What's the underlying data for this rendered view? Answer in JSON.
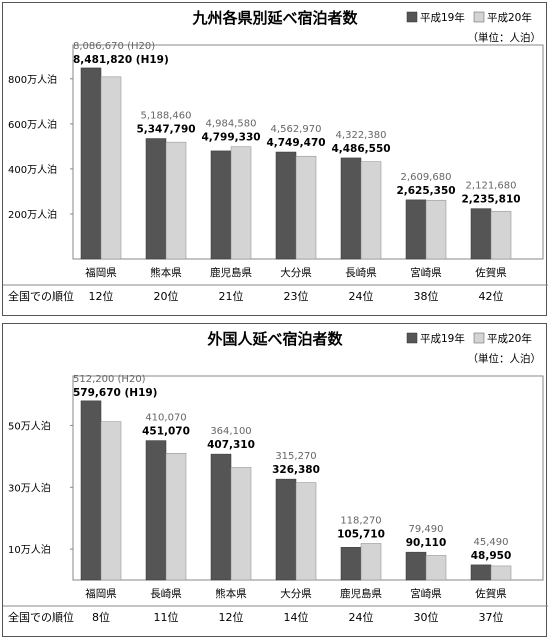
{
  "legend": {
    "h19": "平成19年",
    "h20": "平成20年"
  },
  "colors": {
    "h19": "#555555",
    "h20": "#d4d4d4"
  },
  "chart_data": [
    {
      "type": "bar",
      "title": "九州各県別延べ宿泊者数",
      "unit": "（単位：人泊）",
      "yticks": [
        {
          "value": 2000000,
          "label": "200万人泊"
        },
        {
          "value": 4000000,
          "label": "400万人泊"
        },
        {
          "value": 6000000,
          "label": "600万人泊"
        },
        {
          "value": 8000000,
          "label": "800万人泊"
        }
      ],
      "ylim": [
        0,
        9500000
      ],
      "grid": false,
      "legend_position": "top-right",
      "categories": [
        "福岡県",
        "熊本県",
        "鹿児島県",
        "大分県",
        "長崎県",
        "宮崎県",
        "佐賀県"
      ],
      "series": [
        {
          "name": "平成19年",
          "values": [
            8481820,
            5347790,
            4799330,
            4749470,
            4486550,
            2625350,
            2235810
          ],
          "labels": [
            "8,481,820 (H19)",
            "5,347,790",
            "4,799,330",
            "4,749,470",
            "4,486,550",
            "2,625,350",
            "2,235,810"
          ]
        },
        {
          "name": "平成20年",
          "values": [
            8086670,
            5188460,
            4984580,
            4562970,
            4322380,
            2609680,
            2121680
          ],
          "labels": [
            "8,086,670 (H20)",
            "5,188,460",
            "4,984,580",
            "4,562,970",
            "4,322,380",
            "2,609,680",
            "2,121,680"
          ]
        }
      ],
      "rank_label": "全国での順位",
      "ranks": [
        "12位",
        "20位",
        "21位",
        "23位",
        "24位",
        "38位",
        "42位"
      ]
    },
    {
      "type": "bar",
      "title": "外国人延べ宿泊者数",
      "unit": "（単位：人泊）",
      "yticks": [
        {
          "value": 100000,
          "label": "10万人泊"
        },
        {
          "value": 300000,
          "label": "30万人泊"
        },
        {
          "value": 500000,
          "label": "50万人泊"
        }
      ],
      "ylim": [
        0,
        660000
      ],
      "grid": false,
      "legend_position": "top-right",
      "categories": [
        "福岡県",
        "長崎県",
        "熊本県",
        "大分県",
        "鹿児島県",
        "宮崎県",
        "佐賀県"
      ],
      "series": [
        {
          "name": "平成19年",
          "values": [
            579670,
            451070,
            407310,
            326380,
            105710,
            90110,
            48950
          ],
          "labels": [
            "579,670 (H19)",
            "451,070",
            "407,310",
            "326,380",
            "105,710",
            "90,110",
            "48,950"
          ]
        },
        {
          "name": "平成20年",
          "values": [
            512200,
            410070,
            364100,
            315270,
            118270,
            79490,
            45490
          ],
          "labels": [
            "512,200 (H20)",
            "410,070",
            "364,100",
            "315,270",
            "118,270",
            "79,490",
            "45,490"
          ]
        }
      ],
      "rank_label": "全国での順位",
      "ranks": [
        "8位",
        "11位",
        "12位",
        "14位",
        "24位",
        "30位",
        "37位"
      ]
    }
  ]
}
